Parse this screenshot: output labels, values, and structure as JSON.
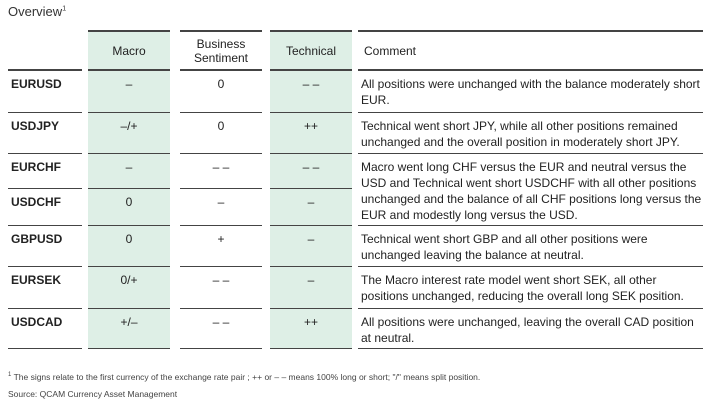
{
  "title": "Overview",
  "title_sup": "1",
  "colors": {
    "shade": "#deefe6",
    "rule": "#444444"
  },
  "headers": [
    "",
    "Macro",
    "Business Sentiment",
    "Technical",
    "Comment"
  ],
  "rows": [
    {
      "pair": "EURUSD",
      "macro": "–",
      "business": "0",
      "technical": "– –",
      "comment": "All positions were unchanged with the balance moderately short EUR."
    },
    {
      "pair": "USDJPY",
      "macro": "–/+",
      "business": "0",
      "technical": "++",
      "comment": "Technical went short JPY, while all other positions remained unchanged and the overall position in moderately short JPY."
    },
    {
      "pair": "EURCHF",
      "macro": "–",
      "business": "– –",
      "technical": "– –",
      "comment": "Macro went long CHF versus the EUR and neutral versus the USD and Technical went short USDCHF with all other positions unchanged and the balance of all CHF positions long versus the EUR and modestly long versus the USD."
    },
    {
      "pair": "USDCHF",
      "macro": "0",
      "business": "–",
      "technical": "–",
      "comment": ""
    },
    {
      "pair": "GBPUSD",
      "macro": "0",
      "business": "+",
      "technical": "–",
      "comment": "Technical went short GBP and all other positions were unchanged leaving the balance at neutral."
    },
    {
      "pair": "EURSEK",
      "macro": "0/+",
      "business": "– –",
      "technical": "–",
      "comment": "The Macro interest rate model went short SEK, all other positions unchanged, reducing the overall long SEK position."
    },
    {
      "pair": "USDCAD",
      "macro": "+/–",
      "business": "– –",
      "technical": "++",
      "comment": "All positions were unchanged, leaving the overall CAD position at neutral."
    }
  ],
  "footnote_sup": "1",
  "footnote": "The signs relate to the first currency of the exchange rate pair ; ++ or – – means 100% long or short; \"/\" means split position.",
  "source": "Source: QCAM Currency Asset Management"
}
